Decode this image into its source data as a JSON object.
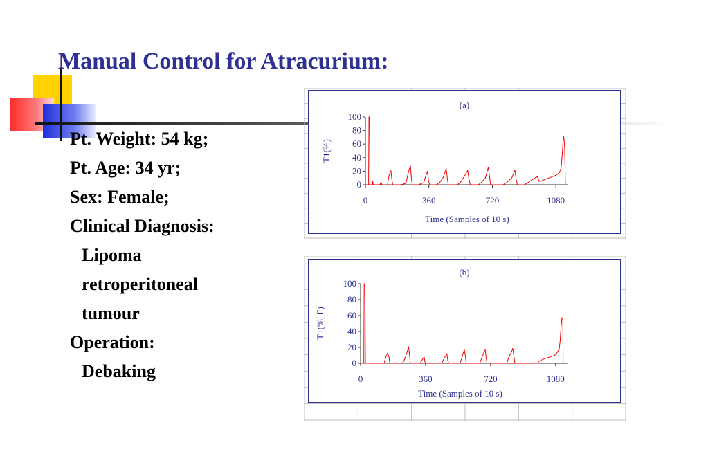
{
  "slide": {
    "title": "Manual Control for Atracurium:",
    "lines": [
      {
        "text": "Pt. Weight: 54 kg;",
        "indent": false
      },
      {
        "text": "Pt. Age: 34 yr;",
        "indent": false
      },
      {
        "text": "Sex: Female;",
        "indent": false
      },
      {
        "text": "Clinical Diagnosis:",
        "indent": false
      },
      {
        "text": "Lipoma",
        "indent": true
      },
      {
        "text": "retroperitoneal",
        "indent": true
      },
      {
        "text": "tumour",
        "indent": true
      },
      {
        "text": "Operation:",
        "indent": false
      },
      {
        "text": "Debaking",
        "indent": true
      }
    ]
  },
  "colors": {
    "title": "#2e3192",
    "series": "#ee0000",
    "axis_text": "#2e3192",
    "frame": "#2e3192",
    "grid": "#bdbdbd"
  },
  "chart_data": [
    {
      "type": "line",
      "title": "(a)",
      "xlabel": "Time (Samples of 10 s)",
      "ylabel": "T1(%)",
      "xlim": [
        0,
        1150
      ],
      "ylim": [
        0,
        100
      ],
      "xticks": [
        0,
        360,
        720,
        1080
      ],
      "yticks": [
        0,
        20,
        40,
        60,
        80,
        100
      ],
      "grid": false,
      "legend": "none",
      "series": [
        {
          "points": [
            [
              0,
              0
            ],
            [
              18,
              0
            ],
            [
              20,
              100
            ],
            [
              24,
              100
            ],
            [
              26,
              0
            ],
            [
              40,
              0
            ],
            [
              42,
              6
            ],
            [
              44,
              0
            ],
            [
              80,
              0
            ],
            [
              90,
              3
            ],
            [
              95,
              0
            ],
            [
              125,
              0
            ],
            [
              135,
              15
            ],
            [
              145,
              21
            ],
            [
              150,
              8
            ],
            [
              155,
              0
            ],
            [
              200,
              0
            ],
            [
              230,
              2
            ],
            [
              245,
              20
            ],
            [
              255,
              28
            ],
            [
              260,
              12
            ],
            [
              265,
              0
            ],
            [
              300,
              0
            ],
            [
              330,
              3
            ],
            [
              345,
              15
            ],
            [
              352,
              20
            ],
            [
              358,
              5
            ],
            [
              365,
              0
            ],
            [
              400,
              0
            ],
            [
              420,
              3
            ],
            [
              440,
              10
            ],
            [
              458,
              24
            ],
            [
              465,
              8
            ],
            [
              470,
              0
            ],
            [
              520,
              0
            ],
            [
              540,
              4
            ],
            [
              560,
              12
            ],
            [
              580,
              21
            ],
            [
              588,
              7
            ],
            [
              595,
              0
            ],
            [
              640,
              0
            ],
            [
              660,
              4
            ],
            [
              680,
              10
            ],
            [
              697,
              26
            ],
            [
              705,
              10
            ],
            [
              710,
              0
            ],
            [
              780,
              0
            ],
            [
              800,
              3
            ],
            [
              830,
              10
            ],
            [
              848,
              22
            ],
            [
              855,
              8
            ],
            [
              862,
              0
            ],
            [
              900,
              0
            ],
            [
              920,
              3
            ],
            [
              950,
              8
            ],
            [
              975,
              12
            ],
            [
              985,
              5
            ],
            [
              1000,
              6
            ],
            [
              1040,
              10
            ],
            [
              1080,
              14
            ],
            [
              1100,
              18
            ],
            [
              1110,
              25
            ],
            [
              1115,
              40
            ],
            [
              1120,
              60
            ],
            [
              1123,
              72
            ],
            [
              1126,
              68
            ],
            [
              1130,
              55
            ],
            [
              1134,
              0
            ]
          ]
        }
      ]
    },
    {
      "type": "line",
      "title": "(b)",
      "xlabel": "Time (Samples of 10 s)",
      "ylabel": "T1(%, F)",
      "xlim": [
        0,
        1150
      ],
      "ylim": [
        0,
        100
      ],
      "xticks": [
        0,
        360,
        720,
        1080
      ],
      "yticks": [
        0,
        20,
        40,
        60,
        80,
        100
      ],
      "grid": false,
      "legend": "none",
      "series": [
        {
          "points": [
            [
              0,
              0
            ],
            [
              18,
              0
            ],
            [
              20,
              100
            ],
            [
              24,
              100
            ],
            [
              27,
              0
            ],
            [
              130,
              0
            ],
            [
              140,
              8
            ],
            [
              150,
              13
            ],
            [
              157,
              8
            ],
            [
              162,
              0
            ],
            [
              230,
              0
            ],
            [
              240,
              3
            ],
            [
              255,
              12
            ],
            [
              266,
              21
            ],
            [
              272,
              8
            ],
            [
              276,
              0
            ],
            [
              330,
              0
            ],
            [
              340,
              4
            ],
            [
              352,
              8
            ],
            [
              358,
              0
            ],
            [
              450,
              0
            ],
            [
              460,
              5
            ],
            [
              470,
              9
            ],
            [
              478,
              12
            ],
            [
              483,
              4
            ],
            [
              488,
              0
            ],
            [
              550,
              0
            ],
            [
              560,
              6
            ],
            [
              570,
              14
            ],
            [
              575,
              17
            ],
            [
              580,
              10
            ],
            [
              585,
              0
            ],
            [
              660,
              0
            ],
            [
              670,
              6
            ],
            [
              680,
              12
            ],
            [
              690,
              18
            ],
            [
              695,
              8
            ],
            [
              700,
              0
            ],
            [
              810,
              0
            ],
            [
              820,
              7
            ],
            [
              835,
              14
            ],
            [
              843,
              19
            ],
            [
              850,
              8
            ],
            [
              855,
              0
            ],
            [
              980,
              0
            ],
            [
              990,
              3
            ],
            [
              1020,
              6
            ],
            [
              1050,
              8
            ],
            [
              1075,
              10
            ],
            [
              1090,
              14
            ],
            [
              1100,
              18
            ],
            [
              1105,
              28
            ],
            [
              1110,
              45
            ],
            [
              1115,
              56
            ],
            [
              1120,
              58
            ],
            [
              1122,
              0
            ]
          ]
        }
      ]
    }
  ]
}
